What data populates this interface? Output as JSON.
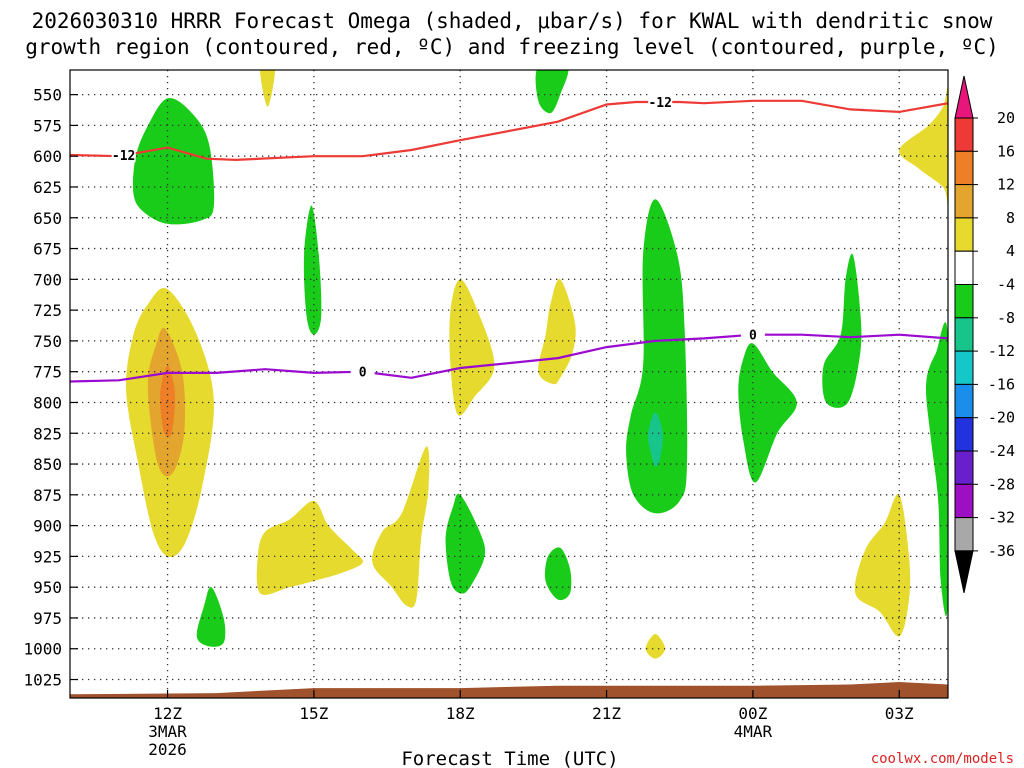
{
  "chart_data": {
    "type": "heatmap",
    "title_line1": "2026030310 HRRR Forecast Omega (shaded, μbar/s) for KWAL with dendritic snow",
    "title_line2": "growth region (contoured, red, ºC) and freezing level (contoured, purple, ºC)",
    "xlabel": "Forecast Time (UTC)",
    "credit": "coolwx.com/models",
    "x_range_hours": [
      10,
      28
    ],
    "y_range_mb": [
      1040,
      530
    ],
    "y_ticks": [
      550,
      575,
      600,
      625,
      650,
      675,
      700,
      725,
      750,
      775,
      800,
      825,
      850,
      875,
      900,
      925,
      950,
      975,
      1000,
      1025
    ],
    "x_ticks": [
      {
        "hour": 12,
        "label": "12Z",
        "sub1": "3MAR",
        "sub2": "2026"
      },
      {
        "hour": 15,
        "label": "15Z",
        "sub1": "",
        "sub2": ""
      },
      {
        "hour": 18,
        "label": "18Z",
        "sub1": "",
        "sub2": ""
      },
      {
        "hour": 21,
        "label": "21Z",
        "sub1": "",
        "sub2": ""
      },
      {
        "hour": 24,
        "label": "00Z",
        "sub1": "4MAR",
        "sub2": ""
      },
      {
        "hour": 27,
        "label": "03Z",
        "sub1": "",
        "sub2": ""
      }
    ],
    "colorbar": {
      "levels": [
        -36,
        -32,
        -28,
        -24,
        -20,
        -16,
        -12,
        -8,
        -4,
        4,
        8,
        12,
        16,
        20
      ],
      "tick_labels": [
        "20",
        "16",
        "12",
        "8",
        "4",
        "-4",
        "-8",
        "-12",
        "-16",
        "-20",
        "-24",
        "-28",
        "-32",
        "-36"
      ],
      "colors_top_to_bottom": [
        "#e8157a",
        "#ee3a36",
        "#ee7f26",
        "#e4a52f",
        "#e6da2e",
        "#ffffff",
        "#19cc19",
        "#17c58a",
        "#16c7c9",
        "#1a8eea",
        "#2233dd",
        "#6a1fcc",
        "#9d0fc2",
        "#a8a8a8",
        "#000000"
      ]
    },
    "colors": {
      "yellow": "#e6da2e",
      "light_orange": "#e4a52f",
      "orange": "#ee7f26",
      "green": "#19cc19",
      "teal": "#17c58a",
      "red_line": "#ee3a36",
      "purple_line": "#9a0ad0",
      "terrain": "#a0522d"
    },
    "dgz_contour": {
      "label": "-12",
      "points": [
        [
          10,
          599
        ],
        [
          11,
          600
        ],
        [
          12,
          593
        ],
        [
          12.8,
          602
        ],
        [
          13.4,
          603
        ],
        [
          15,
          600
        ],
        [
          16,
          600
        ],
        [
          17,
          595
        ],
        [
          18,
          587
        ],
        [
          20,
          572
        ],
        [
          21,
          558
        ],
        [
          21.6,
          556
        ],
        [
          22.5,
          556
        ],
        [
          23,
          557
        ],
        [
          24,
          555
        ],
        [
          25,
          555
        ],
        [
          26,
          562
        ],
        [
          27,
          564
        ],
        [
          28,
          557
        ]
      ]
    },
    "freezing_contour": {
      "label": "0",
      "points": [
        [
          10,
          783
        ],
        [
          11,
          782
        ],
        [
          12,
          776
        ],
        [
          13,
          776
        ],
        [
          14,
          773
        ],
        [
          15,
          776
        ],
        [
          16,
          775
        ],
        [
          17,
          780
        ],
        [
          18,
          772
        ],
        [
          19,
          768
        ],
        [
          20,
          764
        ],
        [
          21,
          755
        ],
        [
          22,
          750
        ],
        [
          23,
          748
        ],
        [
          24,
          745
        ],
        [
          25,
          745
        ],
        [
          26,
          747
        ],
        [
          27,
          745
        ],
        [
          28,
          748
        ]
      ]
    },
    "terrain_surface": [
      [
        10,
        1037
      ],
      [
        13,
        1036
      ],
      [
        15,
        1032
      ],
      [
        18,
        1032
      ],
      [
        20,
        1030
      ],
      [
        22,
        1030
      ],
      [
        24,
        1030
      ],
      [
        26,
        1029
      ],
      [
        27,
        1027
      ],
      [
        28,
        1029
      ]
    ],
    "omega_regions": [
      {
        "value": 6,
        "points": [
          [
            13.9,
            527
          ],
          [
            14.2,
            527
          ],
          [
            14.05,
            560
          ]
        ]
      },
      {
        "value": -6,
        "points": [
          [
            12,
            553
          ],
          [
            12.5,
            565
          ],
          [
            12.85,
            590
          ],
          [
            12.95,
            640
          ],
          [
            12.7,
            652
          ],
          [
            12,
            655
          ],
          [
            11.5,
            645
          ],
          [
            11.3,
            630
          ],
          [
            11.35,
            600
          ],
          [
            11.6,
            575
          ]
        ]
      },
      {
        "value": -6,
        "points": [
          [
            19.6,
            527
          ],
          [
            20.2,
            527
          ],
          [
            20.05,
            550
          ],
          [
            19.85,
            565
          ],
          [
            19.6,
            555
          ]
        ]
      },
      {
        "value": 6,
        "points": [
          [
            28,
            548
          ],
          [
            27.9,
            560
          ],
          [
            27.6,
            575
          ],
          [
            27.0,
            595
          ],
          [
            27.4,
            610
          ],
          [
            27.9,
            625
          ],
          [
            28,
            635
          ]
        ]
      },
      {
        "value": -6,
        "points": [
          [
            14.95,
            640
          ],
          [
            15.1,
            680
          ],
          [
            15.15,
            730
          ],
          [
            15.0,
            745
          ],
          [
            14.85,
            730
          ],
          [
            14.8,
            680
          ]
        ]
      },
      {
        "value": -6,
        "points": [
          [
            22,
            635
          ],
          [
            22.45,
            680
          ],
          [
            22.6,
            740
          ],
          [
            22.65,
            850
          ],
          [
            22.5,
            880
          ],
          [
            22,
            890
          ],
          [
            21.55,
            875
          ],
          [
            21.4,
            840
          ],
          [
            21.5,
            810
          ],
          [
            21.75,
            770
          ],
          [
            21.75,
            680
          ]
        ]
      },
      {
        "value": -12,
        "points": [
          [
            22,
            808
          ],
          [
            22.15,
            825
          ],
          [
            22.1,
            845
          ],
          [
            22,
            852
          ],
          [
            21.9,
            840
          ],
          [
            21.85,
            825
          ]
        ]
      },
      {
        "value": -6,
        "points": [
          [
            24,
            752
          ],
          [
            24.4,
            775
          ],
          [
            24.9,
            800
          ],
          [
            24.5,
            825
          ],
          [
            24.05,
            865
          ],
          [
            23.8,
            830
          ],
          [
            23.7,
            790
          ],
          [
            23.8,
            765
          ]
        ]
      },
      {
        "value": -6,
        "points": [
          [
            26.05,
            680
          ],
          [
            26.2,
            725
          ],
          [
            26.2,
            760
          ],
          [
            25.95,
            800
          ],
          [
            25.5,
            800
          ],
          [
            25.45,
            770
          ],
          [
            25.8,
            745
          ],
          [
            25.9,
            700
          ]
        ]
      },
      {
        "value": -6,
        "points": [
          [
            28,
            748
          ],
          [
            28,
            960
          ],
          [
            27.85,
            945
          ],
          [
            27.8,
            880
          ],
          [
            27.65,
            830
          ],
          [
            27.55,
            785
          ],
          [
            27.75,
            760
          ]
        ]
      },
      {
        "value": 6,
        "points": [
          [
            12,
            708
          ],
          [
            12.6,
            745
          ],
          [
            12.95,
            800
          ],
          [
            12.7,
            870
          ],
          [
            12.35,
            915
          ],
          [
            12.0,
            925
          ],
          [
            11.7,
            905
          ],
          [
            11.4,
            850
          ],
          [
            11.15,
            790
          ],
          [
            11.3,
            745
          ],
          [
            11.6,
            720
          ]
        ]
      },
      {
        "value": 10,
        "points": [
          [
            11.95,
            740
          ],
          [
            12.3,
            775
          ],
          [
            12.35,
            820
          ],
          [
            12.2,
            850
          ],
          [
            12.0,
            860
          ],
          [
            11.8,
            850
          ],
          [
            11.65,
            815
          ],
          [
            11.6,
            780
          ],
          [
            11.75,
            755
          ]
        ]
      },
      {
        "value": 14,
        "points": [
          [
            12.0,
            770
          ],
          [
            12.15,
            792
          ],
          [
            12.1,
            822
          ],
          [
            12.0,
            828
          ],
          [
            11.9,
            820
          ],
          [
            11.85,
            792
          ]
        ]
      },
      {
        "value": 6,
        "points": [
          [
            18.0,
            700
          ],
          [
            18.35,
            725
          ],
          [
            18.7,
            770
          ],
          [
            18.3,
            795
          ],
          [
            17.95,
            810
          ],
          [
            17.8,
            770
          ],
          [
            17.8,
            725
          ]
        ]
      },
      {
        "value": 6,
        "points": [
          [
            20.05,
            700
          ],
          [
            20.35,
            735
          ],
          [
            20.3,
            760
          ],
          [
            20.05,
            780
          ],
          [
            19.9,
            785
          ],
          [
            19.6,
            775
          ],
          [
            19.75,
            745
          ],
          [
            19.85,
            720
          ]
        ]
      },
      {
        "value": 6,
        "points": [
          [
            17.3,
            836
          ],
          [
            17.35,
            870
          ],
          [
            17.2,
            910
          ],
          [
            17.1,
            960
          ],
          [
            16.9,
            965
          ],
          [
            16.6,
            950
          ],
          [
            16.2,
            930
          ],
          [
            16.4,
            905
          ],
          [
            16.8,
            890
          ]
        ]
      },
      {
        "value": 6,
        "points": [
          [
            15.0,
            880
          ],
          [
            15.3,
            900
          ],
          [
            15.8,
            920
          ],
          [
            16.0,
            930
          ],
          [
            15.6,
            938
          ],
          [
            15.0,
            945
          ],
          [
            14.5,
            950
          ],
          [
            13.9,
            955
          ],
          [
            13.85,
            925
          ],
          [
            14.0,
            905
          ],
          [
            14.5,
            895
          ]
        ]
      },
      {
        "value": -6,
        "points": [
          [
            18,
            875
          ],
          [
            18.4,
            905
          ],
          [
            18.5,
            925
          ],
          [
            18.2,
            950
          ],
          [
            18.0,
            955
          ],
          [
            17.8,
            945
          ],
          [
            17.7,
            910
          ],
          [
            17.85,
            885
          ]
        ]
      },
      {
        "value": -6,
        "points": [
          [
            20.05,
            918
          ],
          [
            20.25,
            935
          ],
          [
            20.25,
            955
          ],
          [
            20.0,
            960
          ],
          [
            19.75,
            945
          ],
          [
            19.8,
            925
          ]
        ]
      },
      {
        "value": -6,
        "points": [
          [
            12.9,
            950
          ],
          [
            13.15,
            975
          ],
          [
            13.15,
            995
          ],
          [
            12.85,
            998
          ],
          [
            12.6,
            990
          ],
          [
            12.75,
            965
          ]
        ]
      },
      {
        "value": 6,
        "points": [
          [
            22.0,
            988
          ],
          [
            22.2,
            1000
          ],
          [
            22.0,
            1008
          ],
          [
            21.8,
            1000
          ]
        ]
      },
      {
        "value": 6,
        "points": [
          [
            27,
            875
          ],
          [
            27.2,
            925
          ],
          [
            27.2,
            960
          ],
          [
            27.0,
            990
          ],
          [
            26.6,
            970
          ],
          [
            26.1,
            955
          ],
          [
            26.3,
            920
          ],
          [
            26.7,
            898
          ]
        ]
      }
    ]
  }
}
